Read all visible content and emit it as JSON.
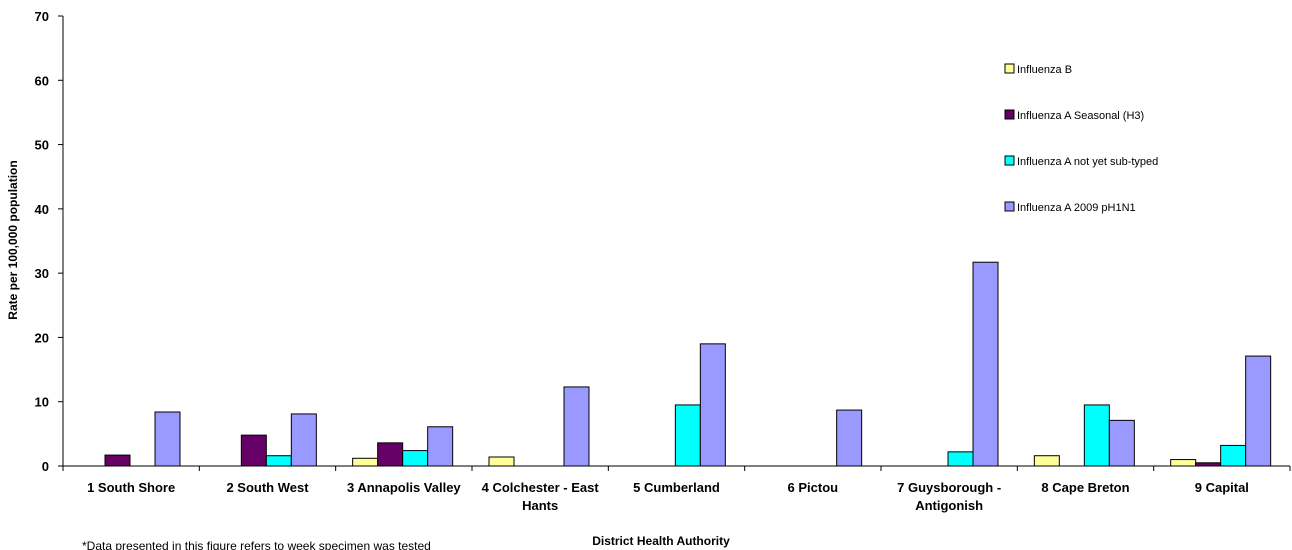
{
  "chart_data": {
    "type": "bar",
    "categories": [
      "1 South Shore",
      "2 South West",
      "3 Annapolis Valley",
      "4 Colchester - East Hants",
      "5 Cumberland",
      "6 Pictou",
      "7 Guysborough - Antigonish",
      "8 Cape Breton",
      "9 Capital"
    ],
    "category_lines": [
      [
        "1 South Shore"
      ],
      [
        "2 South West"
      ],
      [
        "3 Annapolis Valley"
      ],
      [
        "4 Colchester - East",
        "Hants"
      ],
      [
        "5 Cumberland"
      ],
      [
        "6 Pictou"
      ],
      [
        "7 Guysborough -",
        "Antigonish"
      ],
      [
        "8 Cape Breton"
      ],
      [
        "9 Capital"
      ]
    ],
    "series": [
      {
        "name": "Influenza B",
        "color": "#ffff99",
        "values": [
          0,
          0,
          1.2,
          1.4,
          0,
          0,
          0,
          1.6,
          1.0
        ]
      },
      {
        "name": "Influenza A Seasonal (H3)",
        "color": "#660066",
        "values": [
          1.7,
          4.8,
          3.6,
          0,
          0,
          0,
          0,
          0,
          0.5
        ]
      },
      {
        "name": "Influenza A not yet sub-typed",
        "color": "#00ffff",
        "values": [
          0,
          1.6,
          2.4,
          0,
          9.5,
          0,
          2.2,
          9.5,
          3.2
        ]
      },
      {
        "name": "Influenza A 2009 pH1N1",
        "color": "#9999ff",
        "values": [
          8.4,
          8.1,
          6.1,
          12.3,
          19.0,
          8.7,
          31.7,
          7.1,
          17.1
        ]
      }
    ],
    "ylim": [
      0,
      70
    ],
    "yticks": [
      "0",
      "10",
      "20",
      "30",
      "40",
      "50",
      "60",
      "70"
    ],
    "xlabel": "District Health Authority",
    "ylabel": "Rate per 100,000 population",
    "legend_position": "right",
    "grid": false,
    "footnote": "*Data presented in this figure refers to week specimen was tested"
  }
}
